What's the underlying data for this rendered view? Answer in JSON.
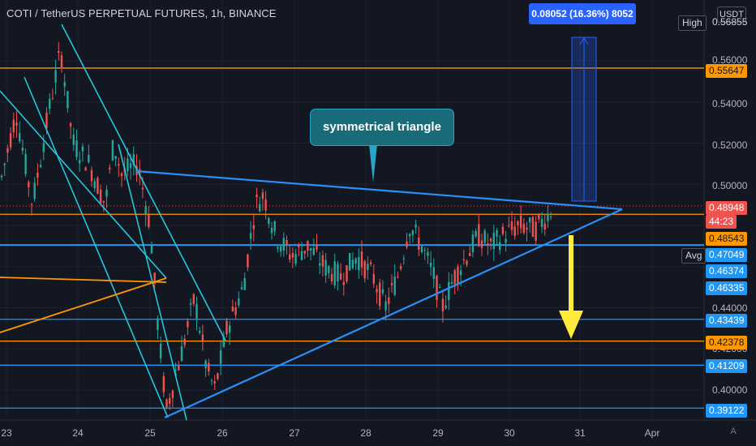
{
  "header": {
    "title": "COTI / TetherUS PERPETUAL FUTURES, 1h, BINANCE",
    "currency": "USDT"
  },
  "annotation": {
    "text": "symmetrical triangle"
  },
  "measure": {
    "text": "0.08052 (16.36%) 8052"
  },
  "colors": {
    "background": "#131722",
    "up": "#26a69a",
    "down": "#ef5350",
    "trendline_cyan": "#26c6da",
    "trendline_blue": "#2196f3",
    "level_orange": "#ff9800",
    "arrow_yellow": "#ffeb3b"
  },
  "price_axis": {
    "ticks": [
      "0.56000",
      "0.54000",
      "0.52000",
      "0.50000",
      "0.44000",
      "0.42000",
      "0.40000"
    ]
  },
  "price_labels": {
    "high": {
      "tag": "High",
      "value": "0.56855"
    },
    "l1": "0.55647",
    "current": "0.48948",
    "countdown": "44:23",
    "l2": "0.48543",
    "avg": {
      "tag": "Avg",
      "value": "0.47049"
    },
    "l3": "0.46374",
    "l4": "0.46335",
    "l5": "0.43439",
    "l6": "0.42378",
    "l7": "0.41209",
    "l8": "0.39122"
  },
  "time_axis": [
    "23",
    "24",
    "25",
    "26",
    "27",
    "28",
    "29",
    "30",
    "31",
    "Apr"
  ],
  "chart_data": {
    "type": "candlestick",
    "title": "COTI / TetherUS PERPETUAL FUTURES, 1h, BINANCE",
    "timeframe": "1h",
    "x_range": [
      "23",
      "Apr"
    ],
    "ylim": [
      0.387,
      0.575
    ],
    "horizontal_levels": [
      {
        "value": 0.55647,
        "color": "orange"
      },
      {
        "value": 0.48543,
        "color": "orange"
      },
      {
        "value": 0.47049,
        "color": "blue"
      },
      {
        "value": 0.43439,
        "color": "blue"
      },
      {
        "value": 0.42378,
        "color": "orange"
      },
      {
        "value": 0.41209,
        "color": "blue"
      },
      {
        "value": 0.39122,
        "color": "blue"
      }
    ],
    "current_price": 0.48948,
    "measure": {
      "change": 0.08052,
      "percent": 16.36,
      "ticks": 8052
    },
    "pattern": "symmetrical triangle"
  },
  "auto_label": "A"
}
